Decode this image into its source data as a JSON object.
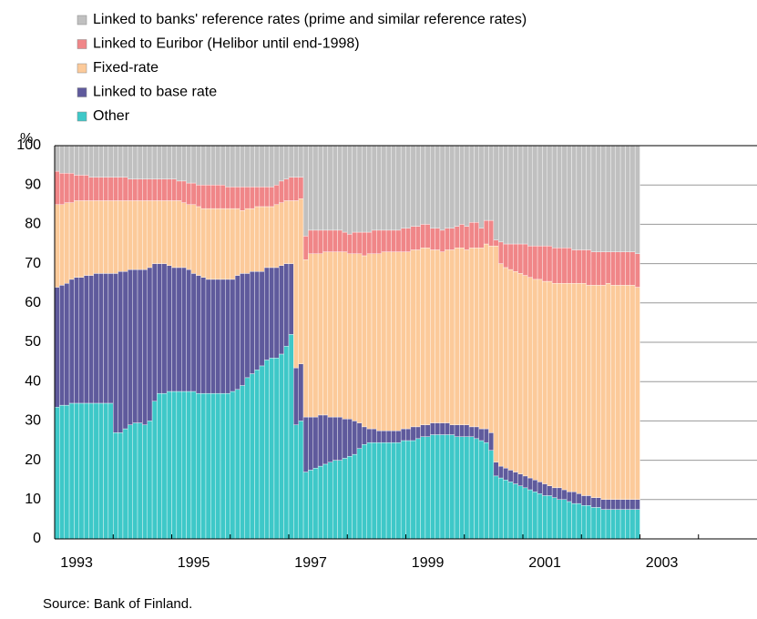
{
  "chart_data": {
    "type": "stacked_bar",
    "y_unit_label": "%",
    "source": "Source: Bank of Finland.",
    "categories": [
      "1993",
      null,
      null,
      null,
      null,
      null,
      null,
      null,
      null,
      null,
      null,
      null,
      null,
      null,
      null,
      null,
      null,
      null,
      null,
      null,
      null,
      null,
      null,
      null,
      "1995",
      null,
      null,
      null,
      null,
      null,
      null,
      null,
      null,
      null,
      null,
      null,
      null,
      null,
      null,
      null,
      null,
      null,
      null,
      null,
      null,
      null,
      null,
      null,
      "1997",
      null,
      null,
      null,
      null,
      null,
      null,
      null,
      null,
      null,
      null,
      null,
      null,
      null,
      null,
      null,
      null,
      null,
      null,
      null,
      null,
      null,
      null,
      null,
      "1999",
      null,
      null,
      null,
      null,
      null,
      null,
      null,
      null,
      null,
      null,
      null,
      null,
      null,
      null,
      null,
      null,
      null,
      null,
      null,
      null,
      null,
      null,
      null,
      "2001",
      null,
      null,
      null,
      null,
      null,
      null,
      null,
      null,
      null,
      null,
      null,
      null,
      null,
      null,
      null,
      null,
      null,
      null,
      null,
      null,
      null,
      null,
      null,
      "2003",
      null,
      null,
      null,
      null,
      null,
      null,
      null,
      null,
      null,
      null,
      null,
      null,
      null,
      null,
      null,
      null,
      null,
      null,
      null,
      null,
      null,
      null,
      null
    ],
    "series": [
      {
        "name": "Linked to banks' reference rates (prime and similar reference rates)",
        "color": "#c0c0c0",
        "values": [
          6.5,
          7,
          7,
          7,
          7.5,
          7.5,
          7.5,
          8,
          8,
          8,
          8,
          8,
          8,
          8,
          8,
          8.5,
          8.5,
          8.5,
          8.5,
          8.5,
          8.5,
          8.5,
          8.5,
          8.5,
          8.5,
          9,
          9,
          9.5,
          9.5,
          10,
          10,
          10,
          10,
          10,
          10,
          10.5,
          10.5,
          10.5,
          10.5,
          10.5,
          10.5,
          10.5,
          10.5,
          10.5,
          10.5,
          10,
          9,
          8.5,
          8,
          8,
          8,
          23,
          21.5,
          21.5,
          21.5,
          21.5,
          21.5,
          21.5,
          21.5,
          22,
          22.5,
          22,
          22,
          22,
          22,
          21.5,
          21.5,
          21.5,
          21.5,
          21.5,
          21.5,
          21,
          21,
          20.5,
          20.5,
          20,
          20,
          21,
          21,
          21.5,
          21,
          21,
          20.5,
          20,
          20.5,
          19.5,
          19.5,
          21,
          19,
          19,
          24,
          24.5,
          25,
          25,
          25,
          25,
          25,
          25.5,
          25.5,
          25.5,
          25.5,
          25.5,
          26,
          26,
          26,
          26,
          26.5,
          26.5,
          26.5,
          26.5,
          27,
          27,
          27,
          27,
          27,
          27,
          27,
          27,
          27,
          27.5,
          null,
          null,
          null,
          null,
          null,
          null,
          null,
          null,
          null,
          null,
          null,
          null,
          null,
          null,
          null,
          null,
          null,
          null,
          null,
          null,
          null,
          null,
          null,
          null
        ]
      },
      {
        "name": "Linked to Euribor (Helibor until end-1998)",
        "color": "#f08688",
        "values": [
          8.5,
          8,
          7.5,
          7.5,
          6.5,
          6.5,
          6.5,
          6,
          6,
          6,
          6,
          6,
          6,
          6,
          6,
          5.5,
          5.5,
          5.5,
          5.5,
          5.5,
          5.5,
          5.5,
          5.5,
          5.5,
          5.5,
          5,
          5.5,
          5.5,
          5.5,
          5.5,
          6,
          6,
          6,
          6,
          6,
          5.5,
          5.5,
          5.5,
          6,
          5.5,
          5.5,
          5,
          5,
          5,
          5,
          5,
          5.5,
          5.5,
          6,
          6,
          5.5,
          6,
          6,
          6,
          6,
          5.5,
          5.5,
          5.5,
          5.5,
          5,
          5,
          5.5,
          5.5,
          6,
          5.5,
          6,
          6,
          5.5,
          5.5,
          5.5,
          5.5,
          6,
          6,
          6,
          6,
          6,
          6,
          5.5,
          5.5,
          5.5,
          5.5,
          5.5,
          5.5,
          6,
          6,
          6.5,
          6.5,
          5,
          6,
          6.5,
          1.5,
          5.5,
          6,
          6.5,
          7,
          7.5,
          8,
          8,
          8.5,
          8.5,
          9,
          9,
          9,
          9,
          9,
          9,
          8.5,
          8.5,
          8.5,
          9,
          8.5,
          8.5,
          8.5,
          8,
          8.5,
          8.5,
          8.5,
          8.5,
          8.5,
          8.5,
          null,
          null,
          null,
          null,
          null,
          null,
          null,
          null,
          null,
          null,
          null,
          null,
          null,
          null,
          null,
          null,
          null,
          null,
          null,
          null,
          null,
          null,
          null,
          null
        ]
      },
      {
        "name": "Fixed-rate",
        "color": "#fcca9a",
        "values": [
          21,
          20.5,
          20.5,
          19.5,
          19.5,
          19.5,
          19,
          19,
          18.5,
          18.5,
          18.5,
          18.5,
          18.5,
          18,
          18,
          17.5,
          17.5,
          17.5,
          17.5,
          17,
          16,
          16,
          16,
          16.5,
          17,
          17,
          16.5,
          16.5,
          17.5,
          17.5,
          17.5,
          18,
          18,
          18,
          18,
          18,
          18,
          17,
          16,
          16.5,
          16,
          16.5,
          16.5,
          15.5,
          15.5,
          16,
          16,
          16,
          16,
          42.5,
          42,
          40,
          41.5,
          41.5,
          41,
          41.5,
          42,
          42,
          42,
          42.5,
          42,
          42.5,
          43,
          43.5,
          44.5,
          44.5,
          45,
          45.5,
          45.5,
          45.5,
          45.5,
          45,
          45,
          45,
          45,
          45,
          45,
          44,
          44,
          43.5,
          44,
          44.5,
          45,
          45,
          44.5,
          45.5,
          45.5,
          46,
          47,
          47.5,
          55,
          51.5,
          51,
          51,
          51,
          51,
          51,
          51,
          51,
          51.5,
          51.5,
          52,
          52,
          52,
          52.5,
          53,
          53,
          53.5,
          54,
          53.5,
          54,
          54,
          54.5,
          55,
          54.5,
          54.5,
          54.5,
          54.5,
          54.5,
          54,
          null,
          null,
          null,
          null,
          null,
          null,
          null,
          null,
          null,
          null,
          null,
          null,
          null,
          null,
          null,
          null,
          null,
          null,
          null,
          null,
          null,
          null,
          null,
          null
        ]
      },
      {
        "name": "Linked to base rate",
        "color": "#5f5a9c",
        "values": [
          30.5,
          30.5,
          31,
          31.5,
          32,
          32,
          32.5,
          32.5,
          33,
          33,
          33,
          33,
          40.5,
          41,
          40,
          39.5,
          39,
          39,
          39.5,
          39,
          35,
          33,
          33,
          32,
          31.5,
          31.5,
          31.5,
          31,
          30,
          30,
          29.5,
          29,
          29,
          29,
          29,
          29,
          28.5,
          29,
          28.5,
          26.5,
          26,
          25,
          24,
          23.5,
          23,
          23,
          22.5,
          21,
          18,
          14.5,
          14.5,
          14,
          13.5,
          13,
          13,
          12.5,
          11.5,
          11,
          11,
          10,
          9.5,
          8.5,
          6.5,
          4.5,
          3.5,
          3.5,
          3,
          3,
          3,
          3,
          3,
          3,
          3,
          3.5,
          3,
          3,
          3,
          3,
          3,
          3,
          3,
          2.5,
          3,
          3,
          3,
          2.5,
          3,
          3,
          3.5,
          4.5,
          3.5,
          3,
          3,
          3,
          3,
          3,
          3,
          3,
          3,
          3,
          3,
          2.5,
          2.5,
          3,
          2.5,
          2.5,
          3,
          2.5,
          2.5,
          2.5,
          2.5,
          2.5,
          2.5,
          2.5,
          2.5,
          2.5,
          2.5,
          2.5,
          2.5,
          2.5,
          null,
          null,
          null,
          null,
          null,
          null,
          null,
          null,
          null,
          null,
          null,
          null,
          null,
          null,
          null,
          null,
          null,
          null,
          null,
          null,
          null,
          null,
          null,
          null
        ]
      },
      {
        "name": "Other",
        "color": "#3ec8c8",
        "values": [
          33.5,
          34,
          34,
          34.5,
          34.5,
          34.5,
          34.5,
          34.5,
          34.5,
          34.5,
          34.5,
          34.5,
          27,
          27,
          28,
          29,
          29.5,
          29.5,
          29,
          30,
          35,
          37,
          37,
          37.5,
          37.5,
          37.5,
          37.5,
          37.5,
          37.5,
          37,
          37,
          37,
          37,
          37,
          37,
          37,
          37.5,
          38,
          39,
          41,
          42,
          43,
          44,
          45.5,
          46,
          46,
          47,
          49,
          52,
          29,
          30,
          17,
          17.5,
          18,
          18.5,
          19,
          19.5,
          20,
          20,
          20.5,
          21,
          21.5,
          23,
          24,
          24.5,
          24.5,
          24.5,
          24.5,
          24.5,
          24.5,
          24.5,
          25,
          25,
          25,
          25.5,
          26,
          26,
          26.5,
          26.5,
          26.5,
          26.5,
          26.5,
          26,
          26,
          26,
          26,
          25.5,
          25,
          24.5,
          22.5,
          16,
          15.5,
          15,
          14.5,
          14,
          13.5,
          13,
          12.5,
          12,
          11.5,
          11,
          11,
          10.5,
          10,
          10,
          9.5,
          9,
          9,
          8.5,
          8.5,
          8,
          8,
          7.5,
          7.5,
          7.5,
          7.5,
          7.5,
          7.5,
          7.5,
          7.5,
          null,
          null,
          null,
          null,
          null,
          null,
          null,
          null,
          null,
          null,
          null,
          null,
          null,
          null,
          null,
          null,
          null,
          null,
          null,
          null,
          null,
          null,
          null,
          null
        ]
      }
    ],
    "ylim": [
      0,
      100
    ],
    "yticks": [
      0,
      10,
      20,
      30,
      40,
      50,
      60,
      70,
      80,
      90,
      100
    ],
    "grid": true,
    "legend": "top"
  }
}
